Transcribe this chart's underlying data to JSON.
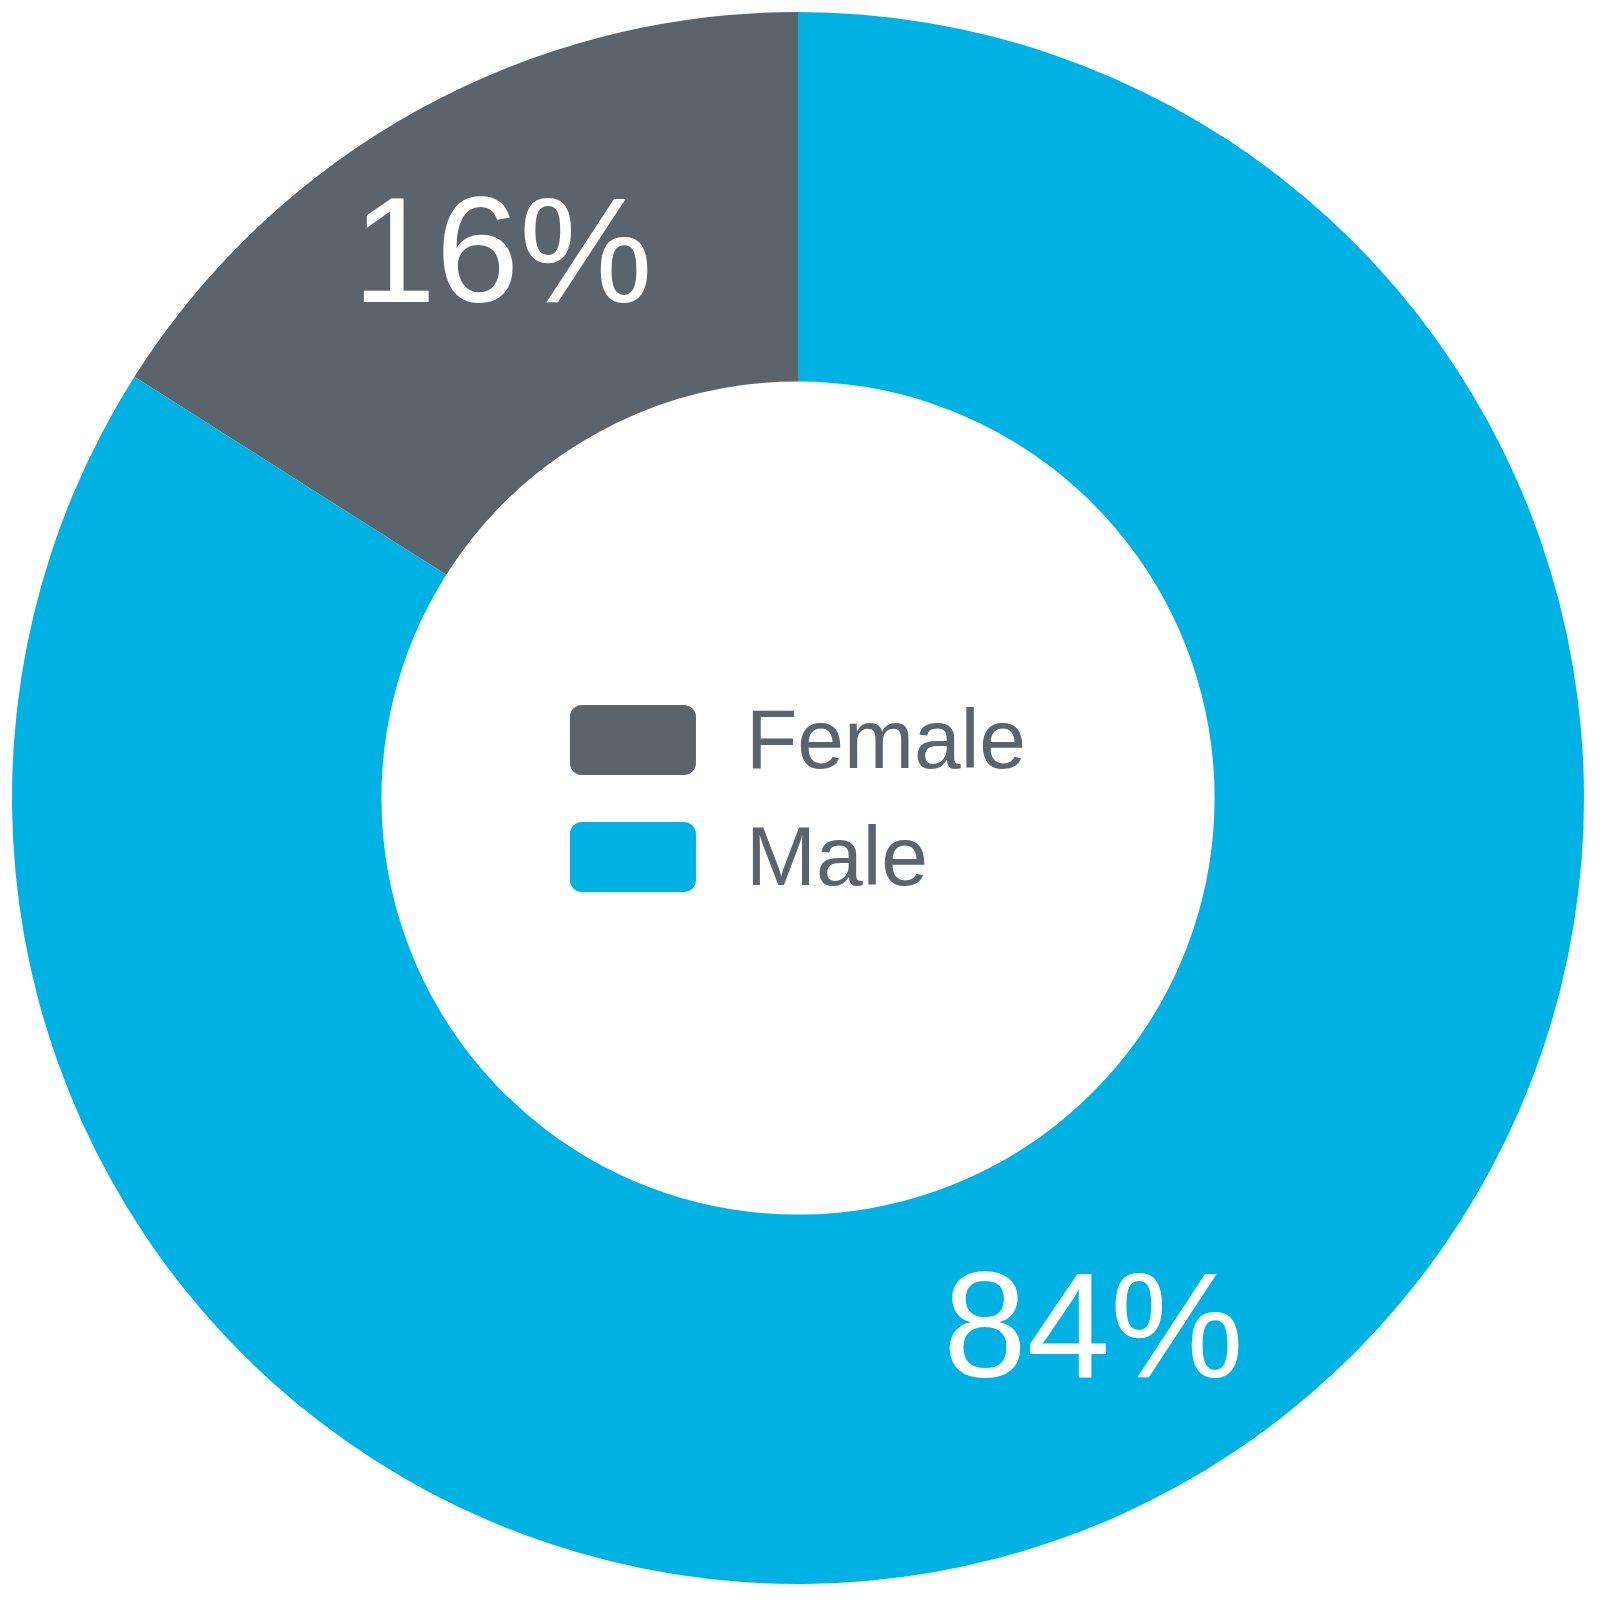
{
  "chart_data": {
    "type": "donut",
    "categories": [
      "Female",
      "Male"
    ],
    "values": [
      16,
      84
    ],
    "colors": [
      "#5b636b",
      "#00b2e3"
    ],
    "value_labels": [
      "16%",
      "84%"
    ],
    "legend": "center"
  }
}
